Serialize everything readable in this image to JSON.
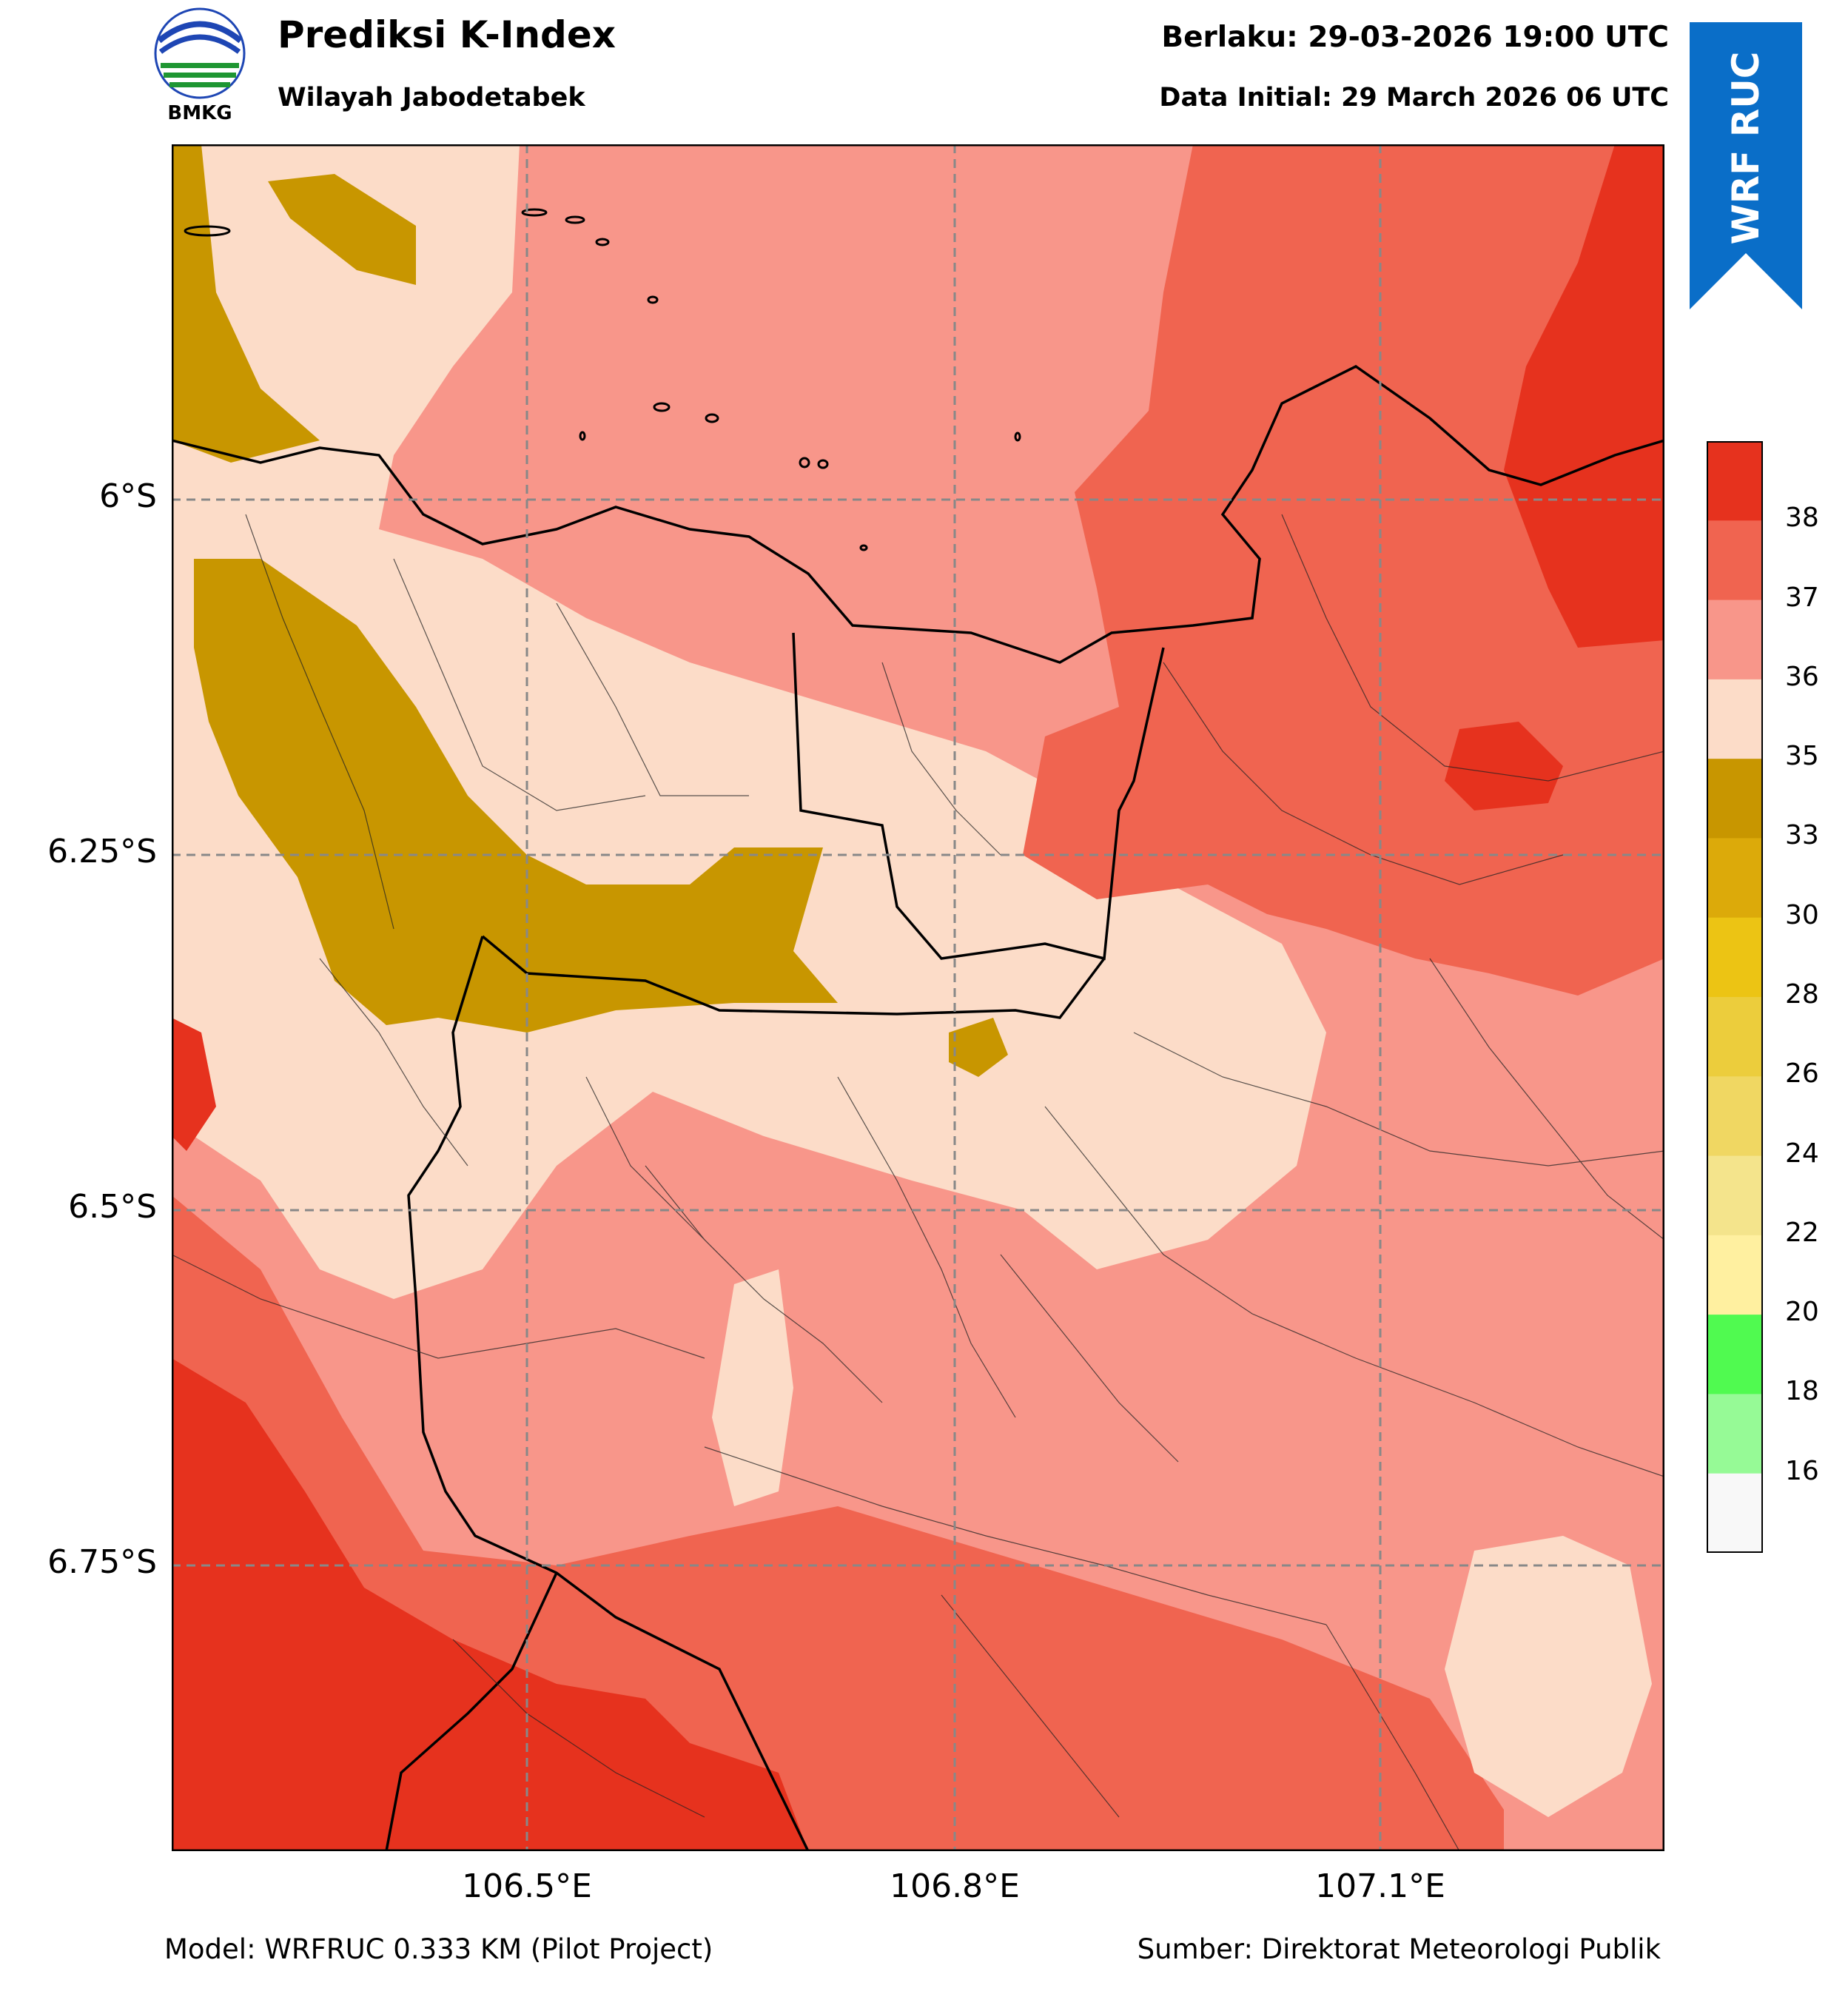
{
  "header": {
    "title": "Prediksi K-Index",
    "subtitle": "Wilayah Jabodetabek",
    "valid_time": "Berlaku: 29-03-2026 19:00 UTC",
    "initial_time": "Data Initial: 29 March 2026 06 UTC",
    "logo_text": "BMKG",
    "ribbon_text": "WRF RUC"
  },
  "map": {
    "lat_ticks": [
      "6°S",
      "6.25°S",
      "6.5°S",
      "6.75°S"
    ],
    "lon_ticks": [
      "106.5°E",
      "106.8°E",
      "107.1°E"
    ]
  },
  "colorbar": {
    "labels": [
      "38",
      "37",
      "36",
      "35",
      "33",
      "30",
      "28",
      "26",
      "24",
      "22",
      "20",
      "18",
      "16"
    ],
    "colors": [
      "#e6321e",
      "#f06450",
      "#f8968a",
      "#fcdcc8",
      "#c89600",
      "#dcaa0a",
      "#ecc414",
      "#eccd3c",
      "#f0d762",
      "#f4e48c",
      "#fff0a0",
      "#50fa50",
      "#96fa96",
      "#f8f8f8"
    ]
  },
  "footer": {
    "model": "Model: WRFRUC 0.333 KM (Pilot Project)",
    "source": "Sumber: Direktorat Meteorologi Publik"
  },
  "colors": {
    "ribbon": "#0a6ec8",
    "very_high": "#e6321e",
    "high": "#f06450",
    "moderate": "#f8968a",
    "low": "#fcdcc8",
    "olive": "#c89600"
  }
}
